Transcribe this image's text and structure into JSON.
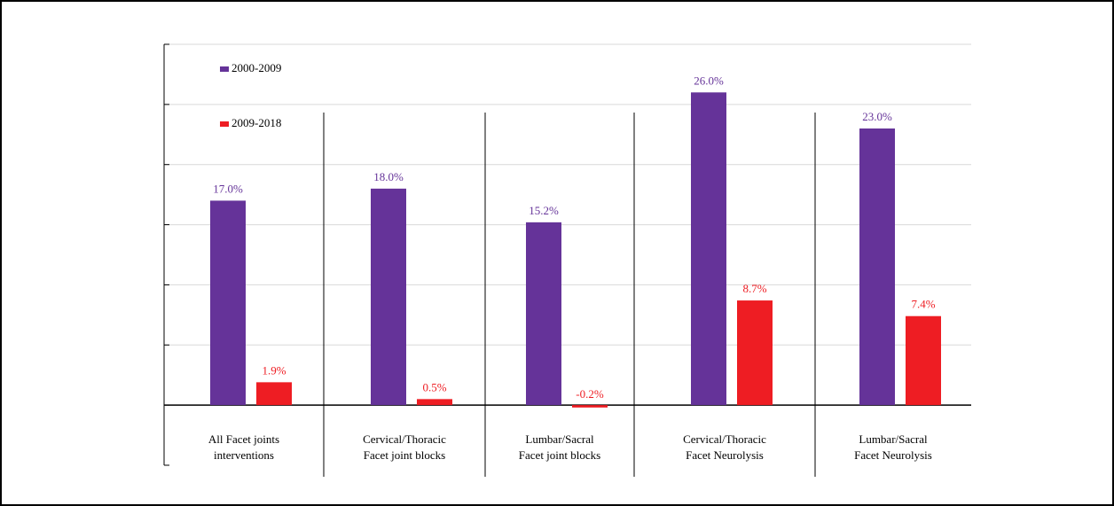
{
  "chart_data": {
    "type": "bar",
    "title": "",
    "xlabel": "",
    "ylabel": "",
    "categories": [
      [
        "All Facet joints",
        "interventions"
      ],
      [
        "Cervical/Thoracic",
        "Facet joint blocks"
      ],
      [
        "Lumbar/Sacral",
        "Facet joint blocks"
      ],
      [
        "Cervical/Thoracic",
        "Facet Neurolysis"
      ],
      [
        "Lumbar/Sacral",
        "Facet Neurolysis"
      ]
    ],
    "series": [
      {
        "name": "2000-2009",
        "color": "#653399",
        "values": [
          17.0,
          18.0,
          15.2,
          26.0,
          23.0
        ],
        "labels": [
          "17.0%",
          "18.0%",
          "15.2%",
          "26.0%",
          "23.0%"
        ]
      },
      {
        "name": "2009-2018",
        "color": "#ee1d23",
        "values": [
          1.9,
          0.5,
          -0.2,
          8.7,
          7.4
        ],
        "labels": [
          "1.9%",
          "0.5%",
          "-0.2%",
          "8.7%",
          "7.4%"
        ]
      }
    ],
    "ylim": [
      -5,
      30
    ],
    "grid": true,
    "legend": "top-left"
  }
}
